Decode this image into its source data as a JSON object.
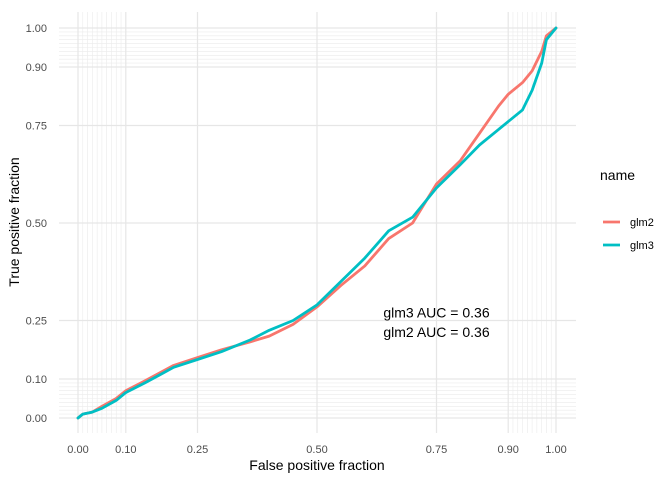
{
  "chart_data": {
    "type": "line",
    "title": "",
    "xlabel": "False positive fraction",
    "ylabel": "True positive fraction",
    "xlim": [
      0,
      1
    ],
    "ylim": [
      0,
      1
    ],
    "x_ticks": [
      0,
      0.1,
      0.25,
      0.5,
      0.75,
      0.9,
      1
    ],
    "x_tick_labels": [
      "0.00",
      "0.10",
      "0.25",
      "0.50",
      "0.75",
      "0.90",
      "1.00"
    ],
    "y_ticks": [
      0,
      0.1,
      0.25,
      0.5,
      0.75,
      0.9,
      1
    ],
    "y_tick_labels": [
      "0.00",
      "0.10",
      "0.25",
      "0.50",
      "0.75",
      "0.90",
      "1.00"
    ],
    "x_minor_grid": [
      0.01,
      0.02,
      0.03,
      0.04,
      0.05,
      0.06,
      0.07,
      0.08,
      0.09,
      0.91,
      0.92,
      0.93,
      0.94,
      0.95,
      0.96,
      0.97,
      0.98,
      0.99
    ],
    "y_minor_grid": [
      0.01,
      0.02,
      0.03,
      0.04,
      0.05,
      0.06,
      0.07,
      0.08,
      0.09,
      0.91,
      0.92,
      0.93,
      0.94,
      0.95,
      0.96,
      0.97,
      0.98,
      0.99
    ],
    "grid": true,
    "legend": {
      "title": "name",
      "position": "right",
      "entries": [
        {
          "label": "glm2",
          "color": "#F8766D"
        },
        {
          "label": "glm3",
          "color": "#00BFC4"
        }
      ]
    },
    "annotations": [
      {
        "text": "glm3 AUC = 0.36",
        "x": 0.75,
        "y": 0.27
      },
      {
        "text": "glm2 AUC = 0.36",
        "x": 0.75,
        "y": 0.22
      }
    ],
    "series": [
      {
        "name": "glm2",
        "color": "#F8766D",
        "points": [
          [
            0,
            0
          ],
          [
            0.01,
            0.01
          ],
          [
            0.03,
            0.015
          ],
          [
            0.05,
            0.03
          ],
          [
            0.08,
            0.05
          ],
          [
            0.1,
            0.07
          ],
          [
            0.14,
            0.095
          ],
          [
            0.17,
            0.115
          ],
          [
            0.2,
            0.135
          ],
          [
            0.25,
            0.155
          ],
          [
            0.3,
            0.175
          ],
          [
            0.36,
            0.195
          ],
          [
            0.4,
            0.21
          ],
          [
            0.45,
            0.24
          ],
          [
            0.5,
            0.285
          ],
          [
            0.55,
            0.34
          ],
          [
            0.6,
            0.39
          ],
          [
            0.65,
            0.46
          ],
          [
            0.7,
            0.5
          ],
          [
            0.75,
            0.6
          ],
          [
            0.8,
            0.66
          ],
          [
            0.84,
            0.73
          ],
          [
            0.88,
            0.8
          ],
          [
            0.9,
            0.83
          ],
          [
            0.93,
            0.86
          ],
          [
            0.95,
            0.89
          ],
          [
            0.97,
            0.94
          ],
          [
            0.98,
            0.98
          ],
          [
            1,
            1
          ]
        ]
      },
      {
        "name": "glm3",
        "color": "#00BFC4",
        "points": [
          [
            0,
            0
          ],
          [
            0.01,
            0.01
          ],
          [
            0.03,
            0.015
          ],
          [
            0.05,
            0.025
          ],
          [
            0.08,
            0.045
          ],
          [
            0.1,
            0.065
          ],
          [
            0.14,
            0.09
          ],
          [
            0.17,
            0.11
          ],
          [
            0.2,
            0.13
          ],
          [
            0.25,
            0.15
          ],
          [
            0.3,
            0.17
          ],
          [
            0.36,
            0.2
          ],
          [
            0.4,
            0.225
          ],
          [
            0.45,
            0.25
          ],
          [
            0.5,
            0.29
          ],
          [
            0.55,
            0.35
          ],
          [
            0.6,
            0.41
          ],
          [
            0.65,
            0.48
          ],
          [
            0.7,
            0.515
          ],
          [
            0.75,
            0.59
          ],
          [
            0.8,
            0.65
          ],
          [
            0.84,
            0.7
          ],
          [
            0.88,
            0.74
          ],
          [
            0.9,
            0.76
          ],
          [
            0.93,
            0.79
          ],
          [
            0.95,
            0.84
          ],
          [
            0.97,
            0.91
          ],
          [
            0.98,
            0.97
          ],
          [
            1,
            1
          ]
        ]
      }
    ]
  }
}
